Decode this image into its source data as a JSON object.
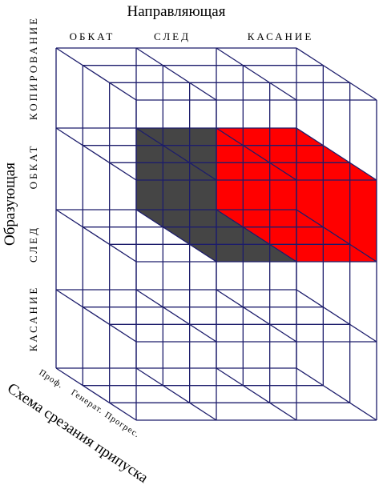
{
  "title": "Направляющая",
  "columns": [
    "ОБКАТ",
    "СЛЕД",
    "КАСАНИЕ"
  ],
  "side_title": "Образующая",
  "rows": [
    "КОПИРОВАНИЕ",
    "ОБКАТ",
    "СЛЕД",
    "КАСАНИЕ"
  ],
  "depth_title": "Схема срезания припуска",
  "depth": [
    "Проф.",
    "Генерат.",
    "Прогрес."
  ]
}
